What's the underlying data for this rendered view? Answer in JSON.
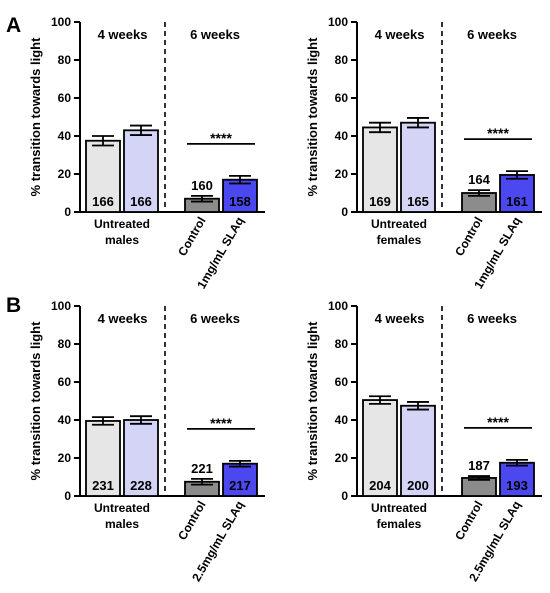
{
  "panel_letters": [
    "A",
    "B"
  ],
  "chart_data": [
    {
      "type": "bar",
      "panel": "A",
      "ylabel": "% transition towards light",
      "ylim": [
        0,
        100
      ],
      "yticks": [
        0,
        20,
        40,
        60,
        80,
        100
      ],
      "groups": [
        "4 weeks",
        "6 weeks"
      ],
      "categories": [
        "Untreated males",
        "Control",
        "1mg/mL SLAq"
      ],
      "bars": [
        {
          "value": 37.5,
          "error": 2.5,
          "n": "166",
          "color": "#e6e6e6",
          "category": 0,
          "group": 0
        },
        {
          "value": 43,
          "error": 2.5,
          "n": "166",
          "color": "#d4d4f6",
          "category": 0,
          "group": 0
        },
        {
          "value": 7,
          "error": 1.5,
          "n": "160",
          "color": "#8c8c8c",
          "category": 1,
          "group": 1
        },
        {
          "value": 17,
          "error": 2,
          "n": "158",
          "color": "#4b48f0",
          "category": 2,
          "group": 1
        }
      ],
      "significance": "****"
    },
    {
      "type": "bar",
      "panel": "A",
      "ylabel": "% transition towards light",
      "ylim": [
        0,
        100
      ],
      "yticks": [
        0,
        20,
        40,
        60,
        80,
        100
      ],
      "groups": [
        "4 weeks",
        "6 weeks"
      ],
      "categories": [
        "Untreated females",
        "Control",
        "1mg/mL SLAq"
      ],
      "bars": [
        {
          "value": 44.5,
          "error": 2.5,
          "n": "169",
          "color": "#e6e6e6",
          "category": 0,
          "group": 0
        },
        {
          "value": 47,
          "error": 2.5,
          "n": "165",
          "color": "#d4d4f6",
          "category": 0,
          "group": 0
        },
        {
          "value": 10,
          "error": 1.5,
          "n": "164",
          "color": "#8c8c8c",
          "category": 1,
          "group": 1
        },
        {
          "value": 19.5,
          "error": 2,
          "n": "161",
          "color": "#4b48f0",
          "category": 2,
          "group": 1
        }
      ],
      "significance": "****"
    },
    {
      "type": "bar",
      "panel": "B",
      "ylabel": "% transition towards light",
      "ylim": [
        0,
        100
      ],
      "yticks": [
        0,
        20,
        40,
        60,
        80,
        100
      ],
      "groups": [
        "4 weeks",
        "6 weeks"
      ],
      "categories": [
        "Untreated males",
        "Control",
        "2.5mg/mL SLAq"
      ],
      "bars": [
        {
          "value": 39.5,
          "error": 2,
          "n": "231",
          "color": "#e6e6e6",
          "category": 0,
          "group": 0
        },
        {
          "value": 40,
          "error": 2,
          "n": "228",
          "color": "#d4d4f6",
          "category": 0,
          "group": 0
        },
        {
          "value": 7.5,
          "error": 1.5,
          "n": "221",
          "color": "#8c8c8c",
          "category": 1,
          "group": 1
        },
        {
          "value": 17,
          "error": 1.5,
          "n": "217",
          "color": "#4b48f0",
          "category": 2,
          "group": 1
        }
      ],
      "significance": "****"
    },
    {
      "type": "bar",
      "panel": "B",
      "ylabel": "% transition towards light",
      "ylim": [
        0,
        100
      ],
      "yticks": [
        0,
        20,
        40,
        60,
        80,
        100
      ],
      "groups": [
        "4 weeks",
        "6 weeks"
      ],
      "categories": [
        "Untreated females",
        "Control",
        "2.5mg/mL SLAq"
      ],
      "bars": [
        {
          "value": 50.5,
          "error": 2,
          "n": "204",
          "color": "#e6e6e6",
          "category": 0,
          "group": 0
        },
        {
          "value": 47.5,
          "error": 2,
          "n": "200",
          "color": "#d4d4f6",
          "category": 0,
          "group": 0
        },
        {
          "value": 9.5,
          "error": 1,
          "n": "187",
          "color": "#8c8c8c",
          "category": 1,
          "group": 1
        },
        {
          "value": 17.5,
          "error": 1.5,
          "n": "193",
          "color": "#4b48f0",
          "category": 2,
          "group": 1
        }
      ],
      "significance": "****"
    }
  ]
}
